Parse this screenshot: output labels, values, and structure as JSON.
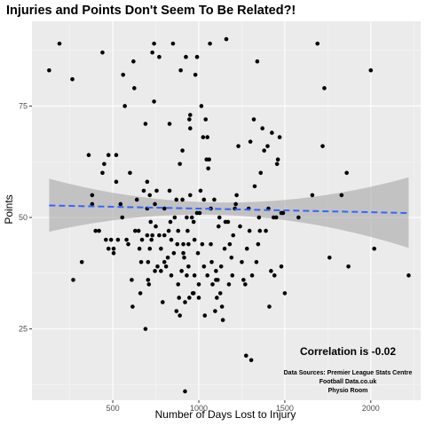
{
  "chart_data": {
    "type": "scatter",
    "title": "Injuries and Points Don't Seem To Be Related?!",
    "xlabel": "Number of Days Lost to Injury",
    "ylabel": "Points",
    "xlim": [
      30,
      2290
    ],
    "ylim": [
      9,
      94
    ],
    "x_ticks": [
      500,
      1000,
      1500,
      2000
    ],
    "y_ticks": [
      25,
      50,
      75
    ],
    "grid": true,
    "annotation": "Correlation is -0.02",
    "sources": [
      "Data Sources: Premier League Stats Centre",
      "Football Data.co.uk",
      "Physio Room"
    ],
    "trend": {
      "type": "linear",
      "style": "dashed",
      "color": "#3366ff",
      "x": [
        130,
        2220
      ],
      "y": [
        52.7,
        51.0
      ],
      "ci_lower": [
        46.8,
        43.2
      ],
      "ci_upper": [
        58.7,
        59.0
      ]
    },
    "colors": {
      "points": "#000000",
      "band": "#a9a9a9",
      "panel": "#ebebeb",
      "trend": "#3366ff"
    },
    "points": [
      [
        130,
        83
      ],
      [
        190,
        89
      ],
      [
        265,
        81
      ],
      [
        270,
        36
      ],
      [
        320,
        40
      ],
      [
        360,
        64
      ],
      [
        380,
        53
      ],
      [
        380,
        55
      ],
      [
        400,
        47
      ],
      [
        420,
        47
      ],
      [
        440,
        87
      ],
      [
        440,
        60
      ],
      [
        450,
        62
      ],
      [
        460,
        45
      ],
      [
        475,
        43
      ],
      [
        475,
        64
      ],
      [
        490,
        45
      ],
      [
        505,
        42
      ],
      [
        505,
        43
      ],
      [
        520,
        58
      ],
      [
        520,
        64
      ],
      [
        530,
        45
      ],
      [
        545,
        53
      ],
      [
        555,
        50
      ],
      [
        560,
        82
      ],
      [
        570,
        75
      ],
      [
        580,
        45
      ],
      [
        590,
        44
      ],
      [
        600,
        60
      ],
      [
        610,
        36
      ],
      [
        615,
        30
      ],
      [
        620,
        85
      ],
      [
        625,
        79
      ],
      [
        630,
        47
      ],
      [
        640,
        54
      ],
      [
        650,
        47
      ],
      [
        655,
        43
      ],
      [
        660,
        33
      ],
      [
        665,
        40
      ],
      [
        670,
        45
      ],
      [
        680,
        56
      ],
      [
        690,
        71
      ],
      [
        690,
        25
      ],
      [
        700,
        58
      ],
      [
        700,
        46
      ],
      [
        700,
        52
      ],
      [
        705,
        40
      ],
      [
        705,
        36
      ],
      [
        710,
        35
      ],
      [
        715,
        43
      ],
      [
        715,
        55
      ],
      [
        720,
        49
      ],
      [
        725,
        45
      ],
      [
        730,
        46
      ],
      [
        730,
        87
      ],
      [
        740,
        76
      ],
      [
        740,
        89
      ],
      [
        745,
        38
      ],
      [
        745,
        53
      ],
      [
        750,
        48
      ],
      [
        755,
        56
      ],
      [
        760,
        39
      ],
      [
        770,
        86
      ],
      [
        770,
        46
      ],
      [
        780,
        38
      ],
      [
        780,
        43
      ],
      [
        790,
        31
      ],
      [
        800,
        52
      ],
      [
        800,
        46
      ],
      [
        800,
        40
      ],
      [
        810,
        39
      ],
      [
        820,
        41
      ],
      [
        825,
        47
      ],
      [
        830,
        71
      ],
      [
        830,
        56
      ],
      [
        835,
        49
      ],
      [
        840,
        45
      ],
      [
        840,
        37
      ],
      [
        850,
        89
      ],
      [
        855,
        42
      ],
      [
        860,
        50
      ],
      [
        870,
        54
      ],
      [
        870,
        29
      ],
      [
        875,
        44
      ],
      [
        880,
        47
      ],
      [
        880,
        35
      ],
      [
        885,
        32
      ],
      [
        890,
        62
      ],
      [
        890,
        28
      ],
      [
        895,
        83
      ],
      [
        900,
        38
      ],
      [
        905,
        65
      ],
      [
        905,
        54
      ],
      [
        910,
        44
      ],
      [
        910,
        42
      ],
      [
        915,
        41
      ],
      [
        920,
        11
      ],
      [
        920,
        31
      ],
      [
        925,
        86
      ],
      [
        930,
        50
      ],
      [
        930,
        37
      ],
      [
        935,
        47
      ],
      [
        940,
        44
      ],
      [
        940,
        39
      ],
      [
        945,
        72
      ],
      [
        945,
        32
      ],
      [
        950,
        73
      ],
      [
        950,
        70
      ],
      [
        950,
        55
      ],
      [
        960,
        50
      ],
      [
        965,
        33
      ],
      [
        970,
        33
      ],
      [
        970,
        49
      ],
      [
        975,
        45
      ],
      [
        975,
        37
      ],
      [
        980,
        82
      ],
      [
        990,
        86
      ],
      [
        990,
        51
      ],
      [
        995,
        42
      ],
      [
        1000,
        32
      ],
      [
        1000,
        35
      ],
      [
        1005,
        51
      ],
      [
        1010,
        56
      ],
      [
        1015,
        75
      ],
      [
        1020,
        44
      ],
      [
        1025,
        68
      ],
      [
        1030,
        54
      ],
      [
        1030,
        39
      ],
      [
        1035,
        28
      ],
      [
        1040,
        72
      ],
      [
        1045,
        63
      ],
      [
        1050,
        68
      ],
      [
        1050,
        37
      ],
      [
        1055,
        61
      ],
      [
        1060,
        63
      ],
      [
        1065,
        89
      ],
      [
        1070,
        52
      ],
      [
        1070,
        44
      ],
      [
        1075,
        40
      ],
      [
        1080,
        35
      ],
      [
        1090,
        54
      ],
      [
        1095,
        29
      ],
      [
        1100,
        38
      ],
      [
        1100,
        36
      ],
      [
        1105,
        32
      ],
      [
        1110,
        36
      ],
      [
        1115,
        48
      ],
      [
        1120,
        50
      ],
      [
        1125,
        33
      ],
      [
        1130,
        39
      ],
      [
        1135,
        30
      ],
      [
        1140,
        27
      ],
      [
        1150,
        43
      ],
      [
        1155,
        49
      ],
      [
        1160,
        90
      ],
      [
        1170,
        49
      ],
      [
        1175,
        35
      ],
      [
        1180,
        44
      ],
      [
        1190,
        41
      ],
      [
        1195,
        37
      ],
      [
        1200,
        46
      ],
      [
        1210,
        52
      ],
      [
        1215,
        53
      ],
      [
        1220,
        55
      ],
      [
        1230,
        66
      ],
      [
        1240,
        48
      ],
      [
        1250,
        40
      ],
      [
        1260,
        36
      ],
      [
        1270,
        35
      ],
      [
        1275,
        19
      ],
      [
        1280,
        43
      ],
      [
        1290,
        52
      ],
      [
        1295,
        47
      ],
      [
        1300,
        67
      ],
      [
        1305,
        18
      ],
      [
        1310,
        37
      ],
      [
        1320,
        72
      ],
      [
        1325,
        57
      ],
      [
        1335,
        40
      ],
      [
        1340,
        85
      ],
      [
        1345,
        44
      ],
      [
        1350,
        50
      ],
      [
        1355,
        47
      ],
      [
        1360,
        60
      ],
      [
        1370,
        70
      ],
      [
        1380,
        65
      ],
      [
        1390,
        47
      ],
      [
        1400,
        66
      ],
      [
        1405,
        52
      ],
      [
        1410,
        30
      ],
      [
        1420,
        38
      ],
      [
        1425,
        69
      ],
      [
        1435,
        50
      ],
      [
        1440,
        37
      ],
      [
        1450,
        50
      ],
      [
        1455,
        62
      ],
      [
        1460,
        63
      ],
      [
        1470,
        68
      ],
      [
        1480,
        51
      ],
      [
        1480,
        39
      ],
      [
        1490,
        51
      ],
      [
        1500,
        33
      ],
      [
        1580,
        50
      ],
      [
        1660,
        55
      ],
      [
        1690,
        89
      ],
      [
        1720,
        66
      ],
      [
        1730,
        79
      ],
      [
        1760,
        41
      ],
      [
        1830,
        55
      ],
      [
        1860,
        60
      ],
      [
        1870,
        39
      ],
      [
        2000,
        83
      ],
      [
        2020,
        43
      ],
      [
        2220,
        37
      ]
    ]
  }
}
